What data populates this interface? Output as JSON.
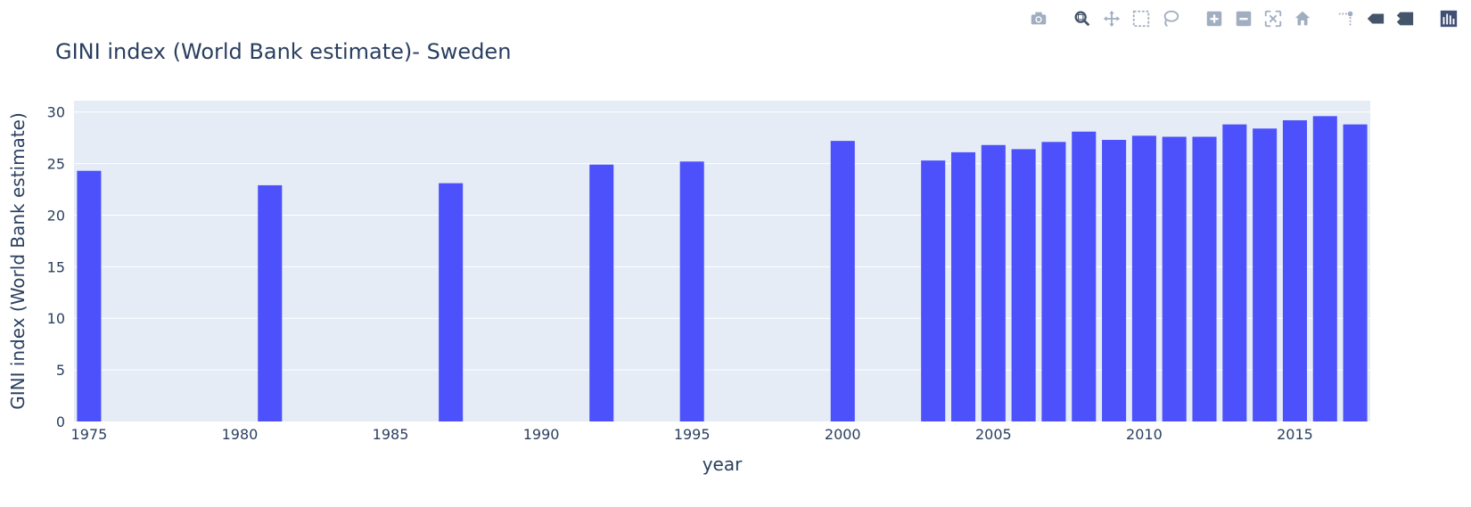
{
  "toolbar": {
    "icons": [
      "camera-icon",
      "zoom-icon",
      "pan-icon",
      "box-select-icon",
      "lasso-select-icon",
      "zoom-in-icon",
      "zoom-out-icon",
      "autoscale-icon",
      "reset-axes-icon",
      "spike-lines-icon",
      "hover-closest-icon",
      "hover-compare-icon",
      "plotly-logo-icon"
    ],
    "icon_color": "#a0aec0",
    "active_color": "#44546a"
  },
  "chart_data": {
    "type": "bar",
    "title": "GINI index (World Bank estimate)- Sweden",
    "xlabel": "year",
    "ylabel": "GINI index (World Bank estimate)",
    "x": [
      1975,
      1981,
      1987,
      1992,
      1995,
      2000,
      2003,
      2004,
      2005,
      2006,
      2007,
      2008,
      2009,
      2010,
      2011,
      2012,
      2013,
      2014,
      2015,
      2016,
      2017
    ],
    "values": [
      24.3,
      22.9,
      23.1,
      24.9,
      25.2,
      27.2,
      25.3,
      26.1,
      26.8,
      26.4,
      27.1,
      28.1,
      27.3,
      27.7,
      27.6,
      27.6,
      28.8,
      28.4,
      29.2,
      29.6,
      28.8
    ],
    "xticks": [
      "1975",
      "1980",
      "1985",
      "1990",
      "1995",
      "2000",
      "2005",
      "2010",
      "2015"
    ],
    "yticks": [
      "0",
      "5",
      "10",
      "15",
      "20",
      "25",
      "30"
    ],
    "xlim": [
      1974.5,
      2017.5
    ],
    "ylim": [
      0,
      31.1
    ],
    "grid": true,
    "bar_color": "#4c51fb",
    "plot_bg": "#e5ecf6",
    "grid_color": "#ffffff"
  }
}
